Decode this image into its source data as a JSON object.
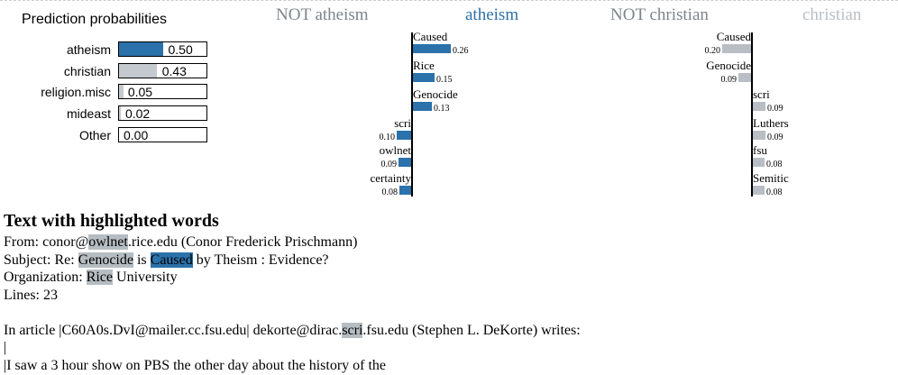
{
  "prediction_panel": {
    "title": "Prediction probabilities",
    "rows": [
      {
        "label": "atheism",
        "value": "0.50",
        "fraction": 0.5,
        "color": "#2b71aa"
      },
      {
        "label": "christian",
        "value": "0.43",
        "fraction": 0.43,
        "color": "#c5cad0"
      },
      {
        "label": "religion.misc",
        "value": "0.05",
        "fraction": 0.05,
        "color": "#c5cad0"
      },
      {
        "label": "mideast",
        "value": "0.02",
        "fraction": 0.02,
        "color": "#c5cad0"
      },
      {
        "label": "Other",
        "value": "0.00",
        "fraction": 0.0,
        "color": "#c5cad0"
      }
    ]
  },
  "explanations": [
    {
      "neg_label": "NOT atheism",
      "pos_label": "atheism",
      "neg_color": "#7c858d",
      "pos_color": "#2b71aa",
      "bar_color": "#2b71aa",
      "features": [
        {
          "word": "Caused",
          "weight": "0.26",
          "w": 0.26,
          "side": "pos"
        },
        {
          "word": "Rice",
          "weight": "0.15",
          "w": 0.15,
          "side": "pos"
        },
        {
          "word": "Genocide",
          "weight": "0.13",
          "w": 0.13,
          "side": "pos"
        },
        {
          "word": "scri",
          "weight": "0.10",
          "w": 0.1,
          "side": "neg"
        },
        {
          "word": "owlnet",
          "weight": "0.09",
          "w": 0.09,
          "side": "neg"
        },
        {
          "word": "certainty",
          "weight": "0.08",
          "w": 0.08,
          "side": "neg"
        }
      ]
    },
    {
      "neg_label": "NOT christian",
      "pos_label": "christian",
      "neg_color": "#7c858d",
      "pos_color": "#b9bec3",
      "bar_color": "#b8bec4",
      "features": [
        {
          "word": "Caused",
          "weight": "0.20",
          "w": 0.2,
          "side": "neg"
        },
        {
          "word": "Genocide",
          "weight": "0.09",
          "w": 0.09,
          "side": "neg"
        },
        {
          "word": "scri",
          "weight": "0.09",
          "w": 0.09,
          "side": "pos"
        },
        {
          "word": "Luthers",
          "weight": "0.09",
          "w": 0.09,
          "side": "pos"
        },
        {
          "word": "fsu",
          "weight": "0.08",
          "w": 0.08,
          "side": "pos"
        },
        {
          "word": "Semitic",
          "weight": "0.08",
          "w": 0.08,
          "side": "pos"
        }
      ]
    }
  ],
  "text_section": {
    "heading": "Text with highlighted words",
    "lines": [
      [
        {
          "t": "From: conor@"
        },
        {
          "t": "owlnet",
          "hl": "gray"
        },
        {
          "t": ".rice.edu (Conor Frederick Prischmann)"
        }
      ],
      [
        {
          "t": "Subject: Re: "
        },
        {
          "t": "Genocide",
          "hl": "gray"
        },
        {
          "t": " is "
        },
        {
          "t": "Caused",
          "hl": "blue"
        },
        {
          "t": " by Theism : Evidence?"
        }
      ],
      [
        {
          "t": "Organization: "
        },
        {
          "t": "Rice",
          "hl": "gray"
        },
        {
          "t": " University"
        }
      ],
      [
        {
          "t": "Lines: 23"
        }
      ],
      [
        {
          "t": ""
        }
      ],
      [
        {
          "t": "In article |C60A0s.DvI@mailer.cc.fsu.edu| dekorte@dirac."
        },
        {
          "t": "scri",
          "hl": "gray"
        },
        {
          "t": ".fsu.edu (Stephen L. DeKorte) writes:"
        }
      ],
      [
        {
          "t": "|"
        }
      ],
      [
        {
          "t": "|I saw a 3 hour show on PBS the other day about the history of the"
        }
      ]
    ]
  }
}
